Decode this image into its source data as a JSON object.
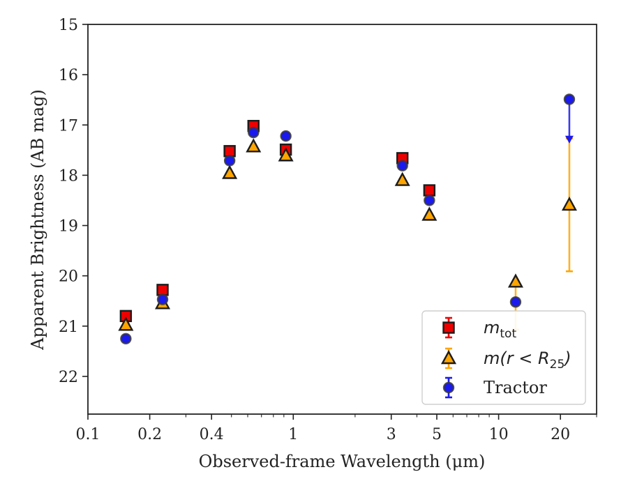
{
  "chart_data": {
    "type": "scatter",
    "title": "",
    "xlabel": "Observed-frame Wavelength (μm)",
    "ylabel": "Apparent Brightness (AB mag)",
    "xscale": "log",
    "xlim": [
      0.1,
      30
    ],
    "ylim": [
      22.75,
      15
    ],
    "y_inverted": true,
    "x_ticks": [
      {
        "value": 0.1,
        "label": "0.1"
      },
      {
        "value": 0.2,
        "label": "0.2"
      },
      {
        "value": 0.4,
        "label": "0.4"
      },
      {
        "value": 1,
        "label": "1"
      },
      {
        "value": 3,
        "label": "3"
      },
      {
        "value": 5,
        "label": "5"
      },
      {
        "value": 10,
        "label": "10"
      },
      {
        "value": 20,
        "label": "20"
      }
    ],
    "y_ticks": [
      {
        "value": 15,
        "label": "15"
      },
      {
        "value": 16,
        "label": "16"
      },
      {
        "value": 17,
        "label": "17"
      },
      {
        "value": 18,
        "label": "18"
      },
      {
        "value": 19,
        "label": "19"
      },
      {
        "value": 20,
        "label": "20"
      },
      {
        "value": 21,
        "label": "21"
      },
      {
        "value": 22,
        "label": "22"
      }
    ],
    "legend_position": "lower-right",
    "grid": false,
    "series": [
      {
        "key": "mtot",
        "legend_label": "m",
        "legend_sub": "tot",
        "marker": "square",
        "color": "#ee0000",
        "points": [
          {
            "x": 0.153,
            "y": 20.8,
            "err": 0.04
          },
          {
            "x": 0.231,
            "y": 20.28,
            "err": 0.04
          },
          {
            "x": 0.49,
            "y": 17.52,
            "err": 0.03
          },
          {
            "x": 0.64,
            "y": 17.02,
            "err": 0.03
          },
          {
            "x": 0.92,
            "y": 17.49,
            "err": 0.03
          },
          {
            "x": 3.4,
            "y": 17.66,
            "err": 0.03
          },
          {
            "x": 4.6,
            "y": 18.3,
            "err": 0.03
          }
        ]
      },
      {
        "key": "mr25",
        "legend_label": "m(r < R",
        "legend_sub": "25",
        "legend_tail": ")",
        "marker": "triangle",
        "color": "#ffa500",
        "points": [
          {
            "x": 0.153,
            "y": 20.98,
            "err": 0.04
          },
          {
            "x": 0.231,
            "y": 20.55,
            "err": 0.04
          },
          {
            "x": 0.49,
            "y": 17.96,
            "err": 0.03
          },
          {
            "x": 0.64,
            "y": 17.43,
            "err": 0.03
          },
          {
            "x": 0.92,
            "y": 17.61,
            "err": 0.03
          },
          {
            "x": 3.4,
            "y": 18.1,
            "err": 0.03
          },
          {
            "x": 4.6,
            "y": 18.79,
            "err": 0.03
          },
          {
            "x": 12.1,
            "y": 20.12,
            "err_low": 0.03,
            "err_high": 0.95
          },
          {
            "x": 22.1,
            "y": 18.59,
            "err_low": 1.32,
            "err_high": 1.32
          }
        ]
      },
      {
        "key": "tractor",
        "legend_label": "Tractor",
        "marker": "circle",
        "color": "#1a1aee",
        "points": [
          {
            "x": 0.153,
            "y": 21.25,
            "err": 0.05
          },
          {
            "x": 0.231,
            "y": 20.47,
            "err": 0.05
          },
          {
            "x": 0.49,
            "y": 17.71,
            "err": 0.04
          },
          {
            "x": 0.64,
            "y": 17.15,
            "err": 0.04
          },
          {
            "x": 0.92,
            "y": 17.22,
            "err": 0.06
          },
          {
            "x": 3.4,
            "y": 17.81,
            "err": 0.04
          },
          {
            "x": 4.6,
            "y": 18.5,
            "err": 0.04
          },
          {
            "x": 12.1,
            "y": 20.52,
            "err": 0.05
          },
          {
            "x": 22.1,
            "y": 16.49,
            "err_low": 0.0,
            "err_high": 0.85,
            "limit_arrow": true
          }
        ]
      }
    ]
  }
}
